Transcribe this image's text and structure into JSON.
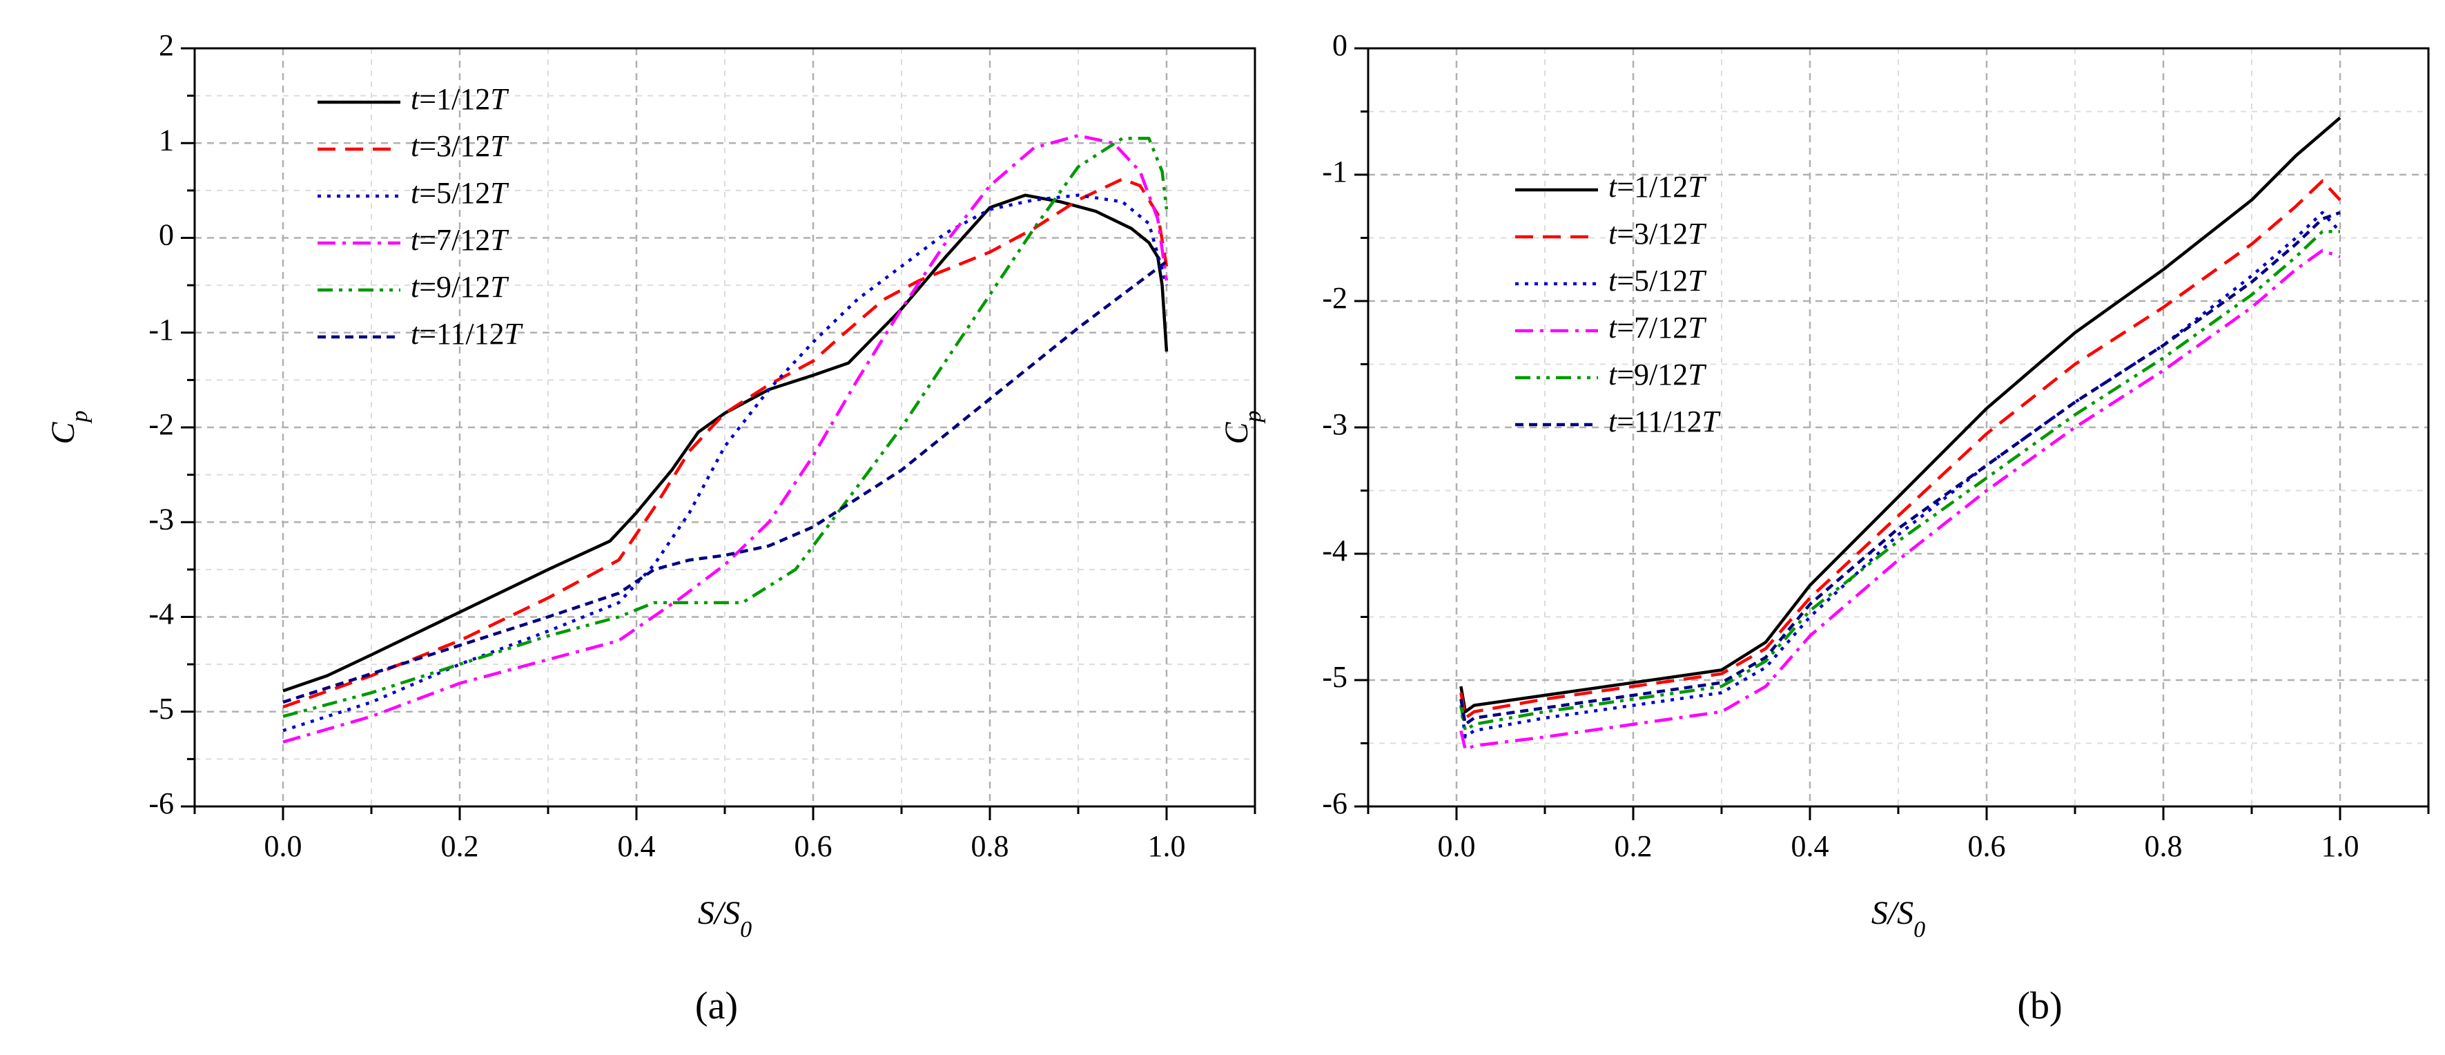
{
  "figure": {
    "caption_a": "(a)",
    "caption_b": "(b)"
  },
  "chart_data": [
    {
      "type": "line",
      "panel": "a",
      "xlabel": "S/S0",
      "ylabel": "Cp",
      "xlim": [
        -0.1,
        1.1
      ],
      "ylim": [
        -6,
        2
      ],
      "xticks": [
        0.0,
        0.2,
        0.4,
        0.6,
        0.8,
        1.0
      ],
      "xtick_labels": [
        "0.0",
        "0.2",
        "0.4",
        "0.6",
        "0.8",
        "1.0"
      ],
      "yticks": [
        -6,
        -5,
        -4,
        -3,
        -2,
        -1,
        0,
        1,
        2
      ],
      "ytick_labels": [
        "-6",
        "-5",
        "-4",
        "-3",
        "-2",
        "-1",
        "0",
        "1",
        "2"
      ],
      "grid": true,
      "legend_position": "top-left",
      "series": [
        {
          "name": "t=1/12T",
          "color": "#000000",
          "dash": "solid",
          "x": [
            0.0,
            0.05,
            0.1,
            0.2,
            0.3,
            0.37,
            0.4,
            0.44,
            0.47,
            0.5,
            0.55,
            0.6,
            0.64,
            0.7,
            0.75,
            0.8,
            0.84,
            0.88,
            0.92,
            0.96,
            0.98,
            0.99,
            0.995,
            1.0
          ],
          "y": [
            -4.78,
            -4.62,
            -4.4,
            -3.95,
            -3.5,
            -3.2,
            -2.9,
            -2.45,
            -2.05,
            -1.85,
            -1.6,
            -1.45,
            -1.32,
            -0.75,
            -0.2,
            0.32,
            0.45,
            0.38,
            0.28,
            0.1,
            -0.05,
            -0.2,
            -0.5,
            -1.2
          ]
        },
        {
          "name": "t=3/12T",
          "color": "#ff0000",
          "dash": "longdash",
          "x": [
            0.0,
            0.1,
            0.2,
            0.3,
            0.38,
            0.42,
            0.46,
            0.5,
            0.55,
            0.6,
            0.63,
            0.68,
            0.72,
            0.8,
            0.85,
            0.9,
            0.95,
            0.97,
            0.99,
            1.0
          ],
          "y": [
            -4.95,
            -4.62,
            -4.25,
            -3.8,
            -3.4,
            -2.85,
            -2.25,
            -1.85,
            -1.55,
            -1.3,
            -1.05,
            -0.65,
            -0.45,
            -0.15,
            0.1,
            0.4,
            0.62,
            0.55,
            0.25,
            -0.3
          ]
        },
        {
          "name": "t=5/12T",
          "color": "#0000cc",
          "dash": "dotted",
          "x": [
            0.0,
            0.1,
            0.2,
            0.3,
            0.38,
            0.42,
            0.46,
            0.5,
            0.55,
            0.6,
            0.65,
            0.7,
            0.75,
            0.8,
            0.85,
            0.9,
            0.95,
            0.98,
            1.0
          ],
          "y": [
            -5.2,
            -4.9,
            -4.5,
            -4.15,
            -3.85,
            -3.45,
            -2.9,
            -2.2,
            -1.6,
            -1.1,
            -0.65,
            -0.3,
            0.05,
            0.3,
            0.4,
            0.45,
            0.38,
            0.15,
            -0.5
          ]
        },
        {
          "name": "t=7/12T",
          "color": "#ff00ff",
          "dash": "dashdot",
          "x": [
            0.0,
            0.1,
            0.2,
            0.3,
            0.38,
            0.45,
            0.5,
            0.55,
            0.6,
            0.65,
            0.7,
            0.75,
            0.8,
            0.85,
            0.9,
            0.94,
            0.97,
            0.99,
            1.0
          ],
          "y": [
            -5.32,
            -5.05,
            -4.7,
            -4.45,
            -4.25,
            -3.8,
            -3.45,
            -3.0,
            -2.3,
            -1.5,
            -0.75,
            -0.05,
            0.55,
            0.95,
            1.08,
            1.0,
            0.7,
            0.2,
            -0.45
          ]
        },
        {
          "name": "t=9/12T",
          "color": "#009900",
          "dash": "dashdotdot",
          "x": [
            0.0,
            0.1,
            0.2,
            0.3,
            0.38,
            0.42,
            0.46,
            0.52,
            0.58,
            0.62,
            0.66,
            0.7,
            0.75,
            0.8,
            0.85,
            0.9,
            0.95,
            0.98,
            0.995,
            1.0
          ],
          "y": [
            -5.05,
            -4.8,
            -4.5,
            -4.2,
            -4.0,
            -3.85,
            -3.85,
            -3.85,
            -3.5,
            -3.0,
            -2.5,
            -2.0,
            -1.3,
            -0.6,
            0.1,
            0.75,
            1.05,
            1.05,
            0.7,
            0.3
          ]
        },
        {
          "name": "t=11/12T",
          "color": "#000080",
          "dash": "shortdash",
          "x": [
            0.0,
            0.1,
            0.2,
            0.3,
            0.38,
            0.42,
            0.46,
            0.5,
            0.55,
            0.6,
            0.65,
            0.7,
            0.8,
            0.9,
            0.95,
            1.0
          ],
          "y": [
            -4.9,
            -4.6,
            -4.3,
            -4.0,
            -3.75,
            -3.5,
            -3.4,
            -3.35,
            -3.25,
            -3.05,
            -2.75,
            -2.45,
            -1.7,
            -0.95,
            -0.6,
            -0.25
          ]
        }
      ]
    },
    {
      "type": "line",
      "panel": "b",
      "xlabel": "S/S0",
      "ylabel": "Cp",
      "xlim": [
        -0.1,
        1.1
      ],
      "ylim": [
        -6,
        0
      ],
      "xticks": [
        0.0,
        0.2,
        0.4,
        0.6,
        0.8,
        1.0
      ],
      "xtick_labels": [
        "0.0",
        "0.2",
        "0.4",
        "0.6",
        "0.8",
        "1.0"
      ],
      "yticks": [
        -6,
        -5,
        -4,
        -3,
        -2,
        -1,
        0
      ],
      "ytick_labels": [
        "-6",
        "-5",
        "-4",
        "-3",
        "-2",
        "-1",
        "0"
      ],
      "grid": true,
      "legend_position": "top-left",
      "series": [
        {
          "name": "t=1/12T",
          "color": "#000000",
          "dash": "solid",
          "x": [
            0.005,
            0.01,
            0.02,
            0.1,
            0.2,
            0.3,
            0.35,
            0.4,
            0.5,
            0.6,
            0.7,
            0.8,
            0.9,
            0.95,
            1.0
          ],
          "y": [
            -5.05,
            -5.25,
            -5.2,
            -5.12,
            -5.02,
            -4.92,
            -4.7,
            -4.25,
            -3.55,
            -2.85,
            -2.25,
            -1.75,
            -1.2,
            -0.85,
            -0.55
          ]
        },
        {
          "name": "t=3/12T",
          "color": "#ff0000",
          "dash": "longdash",
          "x": [
            0.005,
            0.01,
            0.02,
            0.1,
            0.2,
            0.3,
            0.35,
            0.4,
            0.5,
            0.6,
            0.7,
            0.8,
            0.9,
            0.95,
            0.98,
            1.0
          ],
          "y": [
            -5.1,
            -5.3,
            -5.25,
            -5.15,
            -5.05,
            -4.95,
            -4.75,
            -4.35,
            -3.7,
            -3.05,
            -2.5,
            -2.05,
            -1.55,
            -1.25,
            -1.05,
            -1.2
          ]
        },
        {
          "name": "t=5/12T",
          "color": "#0000cc",
          "dash": "dotted",
          "x": [
            0.005,
            0.01,
            0.02,
            0.1,
            0.2,
            0.3,
            0.35,
            0.4,
            0.5,
            0.6,
            0.7,
            0.8,
            0.9,
            0.95,
            0.98,
            1.0
          ],
          "y": [
            -5.2,
            -5.45,
            -5.4,
            -5.3,
            -5.2,
            -5.1,
            -4.9,
            -4.5,
            -3.85,
            -3.3,
            -2.8,
            -2.35,
            -1.8,
            -1.5,
            -1.3,
            -1.45
          ]
        },
        {
          "name": "t=7/12T",
          "color": "#ff00ff",
          "dash": "dashdot",
          "x": [
            0.005,
            0.01,
            0.02,
            0.1,
            0.2,
            0.3,
            0.35,
            0.4,
            0.5,
            0.6,
            0.7,
            0.8,
            0.9,
            0.95,
            0.98,
            1.0
          ],
          "y": [
            -5.4,
            -5.55,
            -5.52,
            -5.45,
            -5.35,
            -5.25,
            -5.05,
            -4.65,
            -4.05,
            -3.5,
            -3.0,
            -2.55,
            -2.05,
            -1.75,
            -1.6,
            -1.65
          ]
        },
        {
          "name": "t=9/12T",
          "color": "#009900",
          "dash": "dashdotdot",
          "x": [
            0.005,
            0.01,
            0.02,
            0.1,
            0.2,
            0.3,
            0.35,
            0.4,
            0.5,
            0.6,
            0.7,
            0.8,
            0.9,
            0.95,
            0.98,
            1.0
          ],
          "y": [
            -5.2,
            -5.4,
            -5.35,
            -5.25,
            -5.15,
            -5.05,
            -4.85,
            -4.45,
            -3.9,
            -3.4,
            -2.9,
            -2.45,
            -1.95,
            -1.65,
            -1.45,
            -1.45
          ]
        },
        {
          "name": "t=11/12T",
          "color": "#000080",
          "dash": "shortdash",
          "x": [
            0.005,
            0.01,
            0.02,
            0.1,
            0.2,
            0.3,
            0.35,
            0.4,
            0.5,
            0.6,
            0.7,
            0.8,
            0.9,
            0.95,
            0.98,
            1.0
          ],
          "y": [
            -5.15,
            -5.35,
            -5.3,
            -5.22,
            -5.12,
            -5.02,
            -4.82,
            -4.4,
            -3.8,
            -3.3,
            -2.8,
            -2.35,
            -1.85,
            -1.55,
            -1.35,
            -1.3
          ]
        }
      ]
    }
  ]
}
